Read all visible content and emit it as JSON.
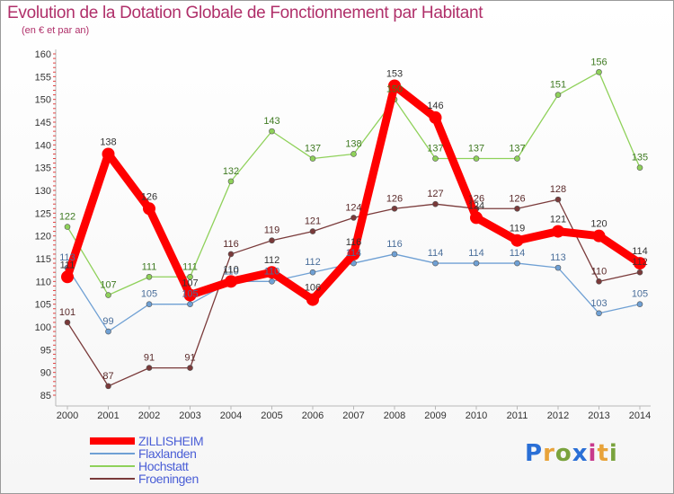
{
  "chart_data": {
    "type": "line",
    "title": "Evolution de la Dotation Globale de Fonctionnement par Habitant",
    "subtitle": "(en € et par an)",
    "xlabel": "",
    "ylabel": "",
    "ylim": [
      85,
      160
    ],
    "ytick_step": 5,
    "grid": false,
    "legend_position": "bottom-left",
    "categories": [
      "2000",
      "2001",
      "2002",
      "2003",
      "2004",
      "2005",
      "2006",
      "2007",
      "2008",
      "2009",
      "2010",
      "2011",
      "2012",
      "2013",
      "2014"
    ],
    "series": [
      {
        "name": "ZILLISHEIM",
        "color": "#ff0000",
        "values": [
          111,
          138,
          126,
          107,
          110,
          112,
          106,
          116,
          153,
          146,
          124,
          119,
          121,
          120,
          114
        ]
      },
      {
        "name": "Flaxlanden",
        "color": "#6fa0d4",
        "values": [
          113,
          99,
          105,
          105,
          110,
          110,
          112,
          114,
          116,
          114,
          114,
          114,
          113,
          103,
          105
        ]
      },
      {
        "name": "Hochstatt",
        "color": "#8fd15a",
        "values": [
          122,
          107,
          111,
          111,
          132,
          143,
          137,
          138,
          150,
          137,
          137,
          137,
          151,
          156,
          135
        ]
      },
      {
        "name": "Froeningen",
        "color": "#7a3a3a",
        "values": [
          101,
          87,
          91,
          91,
          116,
          119,
          121,
          124,
          126,
          127,
          126,
          126,
          128,
          110,
          112
        ]
      }
    ]
  },
  "logo": {
    "text": "Proxiti",
    "chars": [
      "P",
      "r",
      "o",
      "x",
      "i",
      "t",
      "i"
    ]
  }
}
